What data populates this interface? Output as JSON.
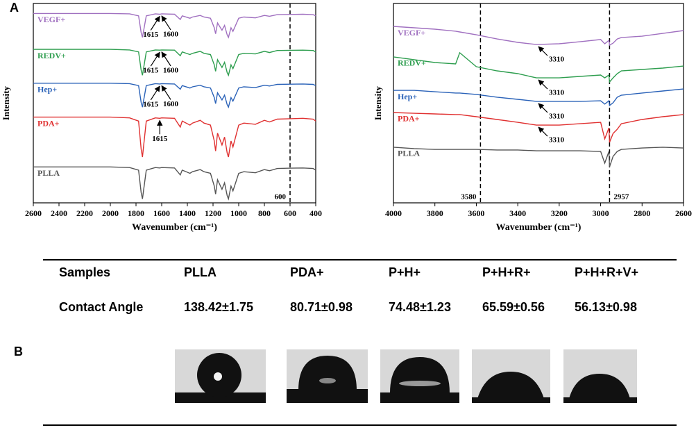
{
  "panels": [
    "A",
    "B"
  ],
  "chart_data": [
    {
      "type": "line",
      "xlabel": "Wavenumber (cm⁻¹)",
      "ylabel": "Intensity",
      "xlim": [
        2600,
        400
      ],
      "ylim": [
        0,
        100
      ],
      "xticks": [
        2600,
        2400,
        2200,
        2000,
        1800,
        1600,
        1400,
        1200,
        1000,
        800,
        600,
        400
      ],
      "reference_lines": [
        600
      ],
      "x": [
        2600,
        2400,
        2200,
        2000,
        1850,
        1780,
        1760,
        1750,
        1740,
        1720,
        1650,
        1615,
        1600,
        1500,
        1455,
        1440,
        1380,
        1360,
        1300,
        1270,
        1220,
        1190,
        1180,
        1165,
        1130,
        1110,
        1090,
        1080,
        1060,
        1045,
        1000,
        960,
        870,
        800,
        760,
        700,
        600,
        500,
        420,
        400
      ],
      "series": [
        {
          "name": "VEGF+",
          "color": "#a070c0",
          "marked": [
            1615,
            1600
          ],
          "values": [
            95,
            95,
            95,
            95,
            94.8,
            93.8,
            85.4,
            83,
            86.6,
            93.8,
            94.8,
            94.6,
            94.8,
            94.6,
            92,
            93.8,
            92.6,
            93.2,
            94,
            93.2,
            92.6,
            87.8,
            84.8,
            90.2,
            86.6,
            89,
            84.2,
            83,
            87.8,
            86,
            92.6,
            93.2,
            92.8,
            94,
            93.6,
            94.4,
            94.5,
            94.6,
            94.4,
            93.8
          ]
        },
        {
          "name": "REDV+",
          "color": "#2e9e4f",
          "marked": [
            1615,
            1600
          ],
          "values": [
            77,
            77,
            77,
            77,
            76.7,
            75.7,
            66.6,
            64,
            67.9,
            75.7,
            76.7,
            76.6,
            76.7,
            76.6,
            73.8,
            75.7,
            74.4,
            75,
            76,
            75,
            74.4,
            69.2,
            66,
            71.8,
            67.9,
            70.5,
            65.3,
            64,
            69.2,
            67.3,
            74.4,
            75,
            74.7,
            76,
            75.4,
            76.4,
            76.5,
            76.6,
            76.4,
            75.7
          ]
        },
        {
          "name": "Hep+",
          "color": "#2a62b8",
          "marked": [
            1615,
            1600
          ],
          "values": [
            60,
            60,
            60,
            60,
            59.8,
            58.8,
            50.4,
            48,
            51.6,
            58.8,
            59.8,
            59.6,
            59.8,
            59.6,
            57,
            58.8,
            57.6,
            58.2,
            59,
            58.2,
            57.6,
            52.8,
            49.8,
            55.2,
            51.6,
            54,
            49.2,
            48,
            52.8,
            51,
            57.6,
            58.2,
            57.8,
            59,
            58.6,
            59.4,
            59.5,
            59.6,
            59.4,
            58.8
          ]
        },
        {
          "name": "PDA+",
          "color": "#e03030",
          "marked": [
            1615
          ],
          "values": [
            43,
            43,
            43,
            43,
            42.6,
            41,
            27,
            23,
            29,
            41,
            42.6,
            42.4,
            42.6,
            42.4,
            38,
            41,
            39,
            40,
            41.4,
            40,
            39,
            31,
            26,
            35,
            29,
            33,
            25,
            23,
            31,
            28,
            39,
            40,
            39.4,
            41.4,
            40.6,
            42,
            42.2,
            42.4,
            42,
            41
          ]
        },
        {
          "name": "PLLA",
          "color": "#555555",
          "marked": [],
          "values": [
            18,
            18,
            18,
            18,
            17.7,
            16.4,
            5.2,
            2,
            6.8,
            16.4,
            17.7,
            17.5,
            17.7,
            17.5,
            14,
            16.4,
            14.8,
            15.6,
            16.7,
            15.6,
            14.8,
            8.4,
            4.4,
            11.6,
            6.8,
            10,
            3.6,
            2,
            8.4,
            6,
            14.8,
            15.6,
            15.1,
            16.7,
            16.1,
            17.2,
            17.4,
            17.5,
            17.2,
            16.4
          ]
        }
      ]
    },
    {
      "type": "line",
      "xlabel": "Wavenumber (cm⁻¹)",
      "ylabel": "Intensity",
      "xlim": [
        4000,
        2600
      ],
      "ylim": [
        0,
        100
      ],
      "xticks": [
        4000,
        3800,
        3600,
        3400,
        3200,
        3000,
        2800,
        2600
      ],
      "reference_lines": [
        3580,
        2957
      ],
      "x": [
        4000,
        3900,
        3800,
        3700,
        3680,
        3600,
        3500,
        3400,
        3310,
        3200,
        3100,
        3000,
        2980,
        2960,
        2957,
        2940,
        2920,
        2900,
        2800,
        2700,
        2600
      ],
      "series": [
        {
          "name": "VEGF+",
          "color": "#a070c0",
          "marked": [
            3310
          ],
          "values": [
            88.5,
            87.8,
            87.1,
            86.1,
            85.7,
            84.3,
            82.2,
            80.5,
            79.4,
            79.8,
            80.8,
            81.9,
            79.8,
            81.5,
            79.1,
            80.1,
            82.2,
            82.9,
            83.6,
            85,
            86.4
          ]
        },
        {
          "name": "REDV+",
          "color": "#2e9e4f",
          "marked": [
            3310
          ],
          "values": [
            73.2,
            71.8,
            70.4,
            69.7,
            75.3,
            68.3,
            66.2,
            64.8,
            62.7,
            62.7,
            63.4,
            64.1,
            62.7,
            64.1,
            60.6,
            62.7,
            64.8,
            66.2,
            66.9,
            67.6,
            68.6
          ]
        },
        {
          "name": "Hep+",
          "color": "#2a62b8",
          "marked": [
            3310
          ],
          "values": [
            56.4,
            56.4,
            55.7,
            55.1,
            55.1,
            54.4,
            53,
            51.9,
            50.9,
            50.9,
            50.9,
            51.2,
            49.5,
            51.2,
            48.8,
            50.2,
            53,
            54,
            55.1,
            56.1,
            57.1
          ]
        },
        {
          "name": "PDA+",
          "color": "#e03030",
          "marked": [
            3310
          ],
          "values": [
            45.3,
            44.9,
            44.6,
            44.3,
            44.3,
            43.2,
            41.8,
            40.4,
            39,
            39,
            39.7,
            40.4,
            32.1,
            37.6,
            30.3,
            34.8,
            36.9,
            39.7,
            41.8,
            43.2,
            44.3
          ]
        },
        {
          "name": "PLLA",
          "color": "#555555",
          "marked": [],
          "values": [
            27.9,
            27.2,
            26.8,
            26.8,
            26.8,
            26.8,
            26.5,
            26.5,
            26.1,
            26.1,
            26.1,
            25.8,
            19.9,
            25.8,
            18.1,
            23.3,
            25.8,
            26.8,
            27.5,
            27.9,
            27.5
          ]
        }
      ]
    }
  ],
  "table": {
    "header": [
      "Samples",
      "PLLA",
      "PDA+",
      "P+H+",
      "P+H+R+",
      "P+H+R+V+"
    ],
    "rows": [
      [
        "Contact Angle",
        "138.42±1.75",
        "80.71±0.98",
        "74.48±1.23",
        "65.59±0.56",
        "56.13±0.98"
      ]
    ]
  }
}
